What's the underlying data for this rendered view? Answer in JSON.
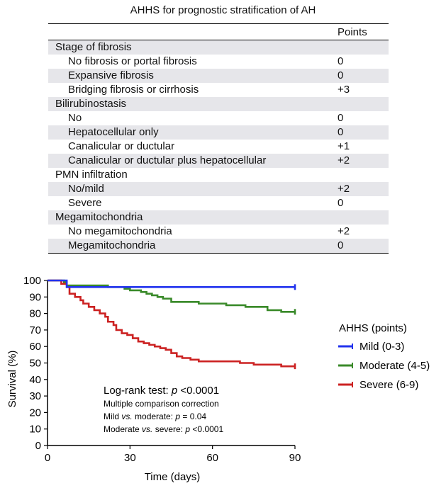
{
  "table": {
    "title": "AHHS for prognostic stratification of AH",
    "points_header": "Points",
    "rows": [
      {
        "label": "Stage of fibrosis",
        "points": "",
        "type": "category"
      },
      {
        "label": "No fibrosis or portal fibrosis",
        "points": "0",
        "type": "item"
      },
      {
        "label": "Expansive fibrosis",
        "points": "0",
        "type": "item"
      },
      {
        "label": "Bridging fibrosis or cirrhosis",
        "points": "+3",
        "type": "item"
      },
      {
        "label": "Bilirubinostasis",
        "points": "",
        "type": "category"
      },
      {
        "label": "No",
        "points": "0",
        "type": "item"
      },
      {
        "label": "Hepatocellular only",
        "points": "0",
        "type": "item"
      },
      {
        "label": "Canalicular or ductular",
        "points": "+1",
        "type": "item"
      },
      {
        "label": "Canalicular or ductular plus hepatocellular",
        "points": "+2",
        "type": "item"
      },
      {
        "label": "PMN infiltration",
        "points": "",
        "type": "category"
      },
      {
        "label": "No/mild",
        "points": "+2",
        "type": "item"
      },
      {
        "label": "Severe",
        "points": "0",
        "type": "item"
      },
      {
        "label": "Megamitochondria",
        "points": "",
        "type": "category"
      },
      {
        "label": "No megamitochondria",
        "points": "+2",
        "type": "item"
      },
      {
        "label": "Megamitochondria",
        "points": "0",
        "type": "item"
      }
    ]
  },
  "chart_data": {
    "type": "line",
    "xlabel": "Time (days)",
    "ylabel": "Survival (%)",
    "xlim": [
      0,
      90
    ],
    "ylim": [
      0,
      100
    ],
    "xticks": [
      0,
      30,
      60,
      90
    ],
    "yticks": [
      0,
      10,
      20,
      30,
      40,
      50,
      60,
      70,
      80,
      90,
      100
    ],
    "legend": {
      "title": "AHHS (points)",
      "position": "right"
    },
    "series": [
      {
        "name": "Mild (0-3)",
        "color": "#2233ee",
        "x": [
          0,
          7,
          90
        ],
        "y": [
          100,
          96,
          96
        ]
      },
      {
        "name": "Moderate (4-5)",
        "color": "#3a8a2a",
        "x": [
          0,
          6,
          7,
          22,
          28,
          30,
          34,
          36,
          38,
          40,
          42,
          45,
          55,
          65,
          72,
          80,
          85,
          90
        ],
        "y": [
          100,
          99,
          97,
          96,
          95,
          94,
          93,
          92,
          91,
          90,
          89,
          87,
          86,
          85,
          84,
          82,
          81,
          81
        ]
      },
      {
        "name": "Severe (6-9)",
        "color": "#cc2222",
        "x": [
          0,
          5,
          7,
          8,
          10,
          12,
          13,
          15,
          17,
          19,
          21,
          22,
          24,
          25,
          27,
          29,
          31,
          33,
          35,
          37,
          39,
          41,
          43,
          45,
          47,
          49,
          52,
          55,
          60,
          70,
          75,
          85,
          90
        ],
        "y": [
          100,
          98,
          96,
          92,
          90,
          88,
          86,
          84,
          82,
          80,
          78,
          75,
          73,
          70,
          68,
          67,
          65,
          63,
          62,
          61,
          60,
          59,
          58,
          56,
          54,
          53,
          52,
          51,
          51,
          50,
          49,
          48,
          48
        ]
      }
    ],
    "annotations": {
      "test": "Log-rank test: ",
      "p_symbol": "p",
      "test_value": " <0.0001",
      "correction": "Multiple comparison correction",
      "line1_a": "Mild ",
      "line1_vs": "vs.",
      "line1_b": " moderate: ",
      "line1_p": "p",
      "line1_val": " = 0.04",
      "line2_a": "Moderate ",
      "line2_vs": "vs.",
      "line2_b": " severe: ",
      "line2_p": "p",
      "line2_val": " <0.0001"
    }
  }
}
